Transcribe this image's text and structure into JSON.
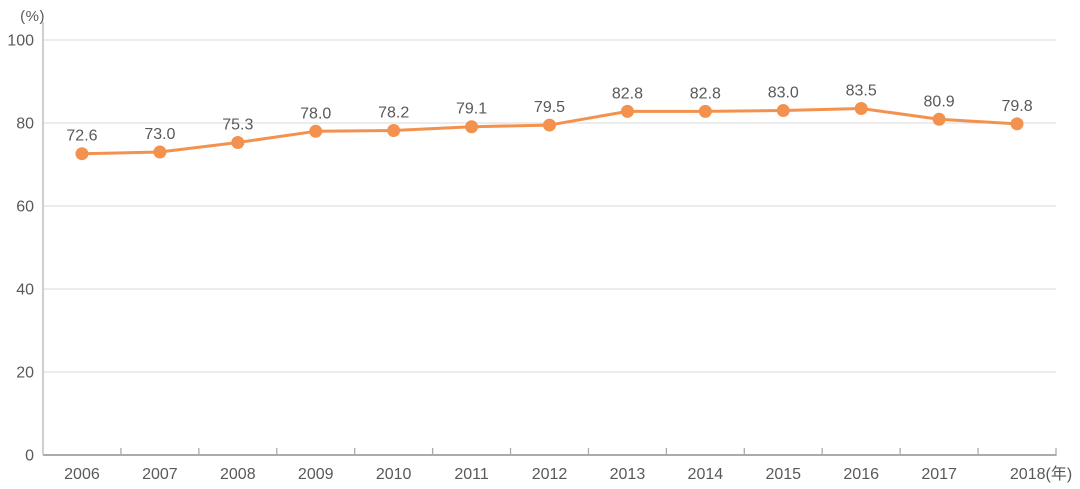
{
  "chart_data": {
    "type": "line",
    "title": "",
    "categories": [
      "2006",
      "2007",
      "2008",
      "2009",
      "2010",
      "2011",
      "2012",
      "2013",
      "2014",
      "2015",
      "2016",
      "2017",
      "2018"
    ],
    "values": [
      72.6,
      73.0,
      75.3,
      78.0,
      78.2,
      79.1,
      79.5,
      82.8,
      82.8,
      83.0,
      83.5,
      80.9,
      79.8
    ],
    "data_labels": [
      "72.6",
      "73.0",
      "75.3",
      "78.0",
      "78.2",
      "79.1",
      "79.5",
      "82.8",
      "82.8",
      "83.0",
      "83.5",
      "80.9",
      "79.8"
    ],
    "x_tick_labels": [
      "2006",
      "2007",
      "2008",
      "2009",
      "2010",
      "2011",
      "2012",
      "2013",
      "2014",
      "2015",
      "2016",
      "2017",
      "2018(年)"
    ],
    "ylabel": "(%)",
    "xlabel": "(年)",
    "ylim": [
      0,
      100
    ],
    "yticks": [
      0,
      20,
      40,
      60,
      80,
      100
    ],
    "grid": "horizontal",
    "legend": "none",
    "colors": {
      "line": "#F3924E",
      "marker": "#F3924E",
      "data_label": "#595959",
      "tick_label": "#595959",
      "gridline": "#D9D9D9",
      "axis_line": "#BFBFBF",
      "baseline": "#ABABAB"
    }
  }
}
